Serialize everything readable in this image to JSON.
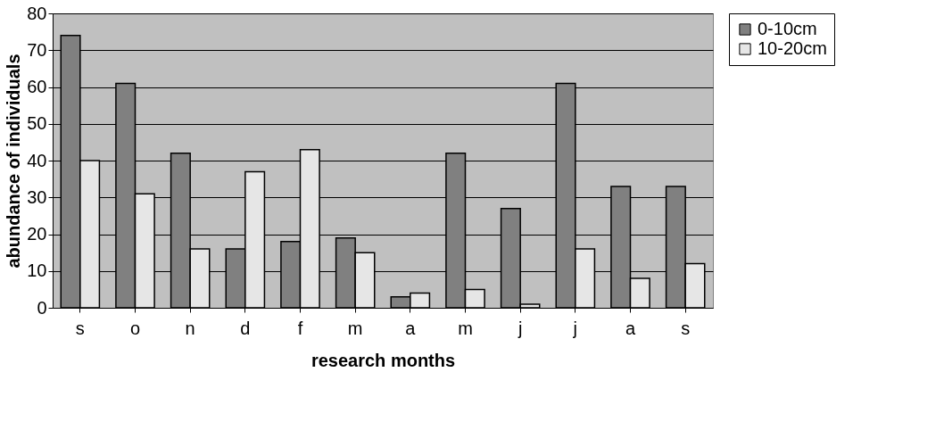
{
  "chart_data": {
    "type": "bar",
    "xlabel": "research months",
    "ylabel": "abundance of individuals",
    "categories": [
      "s",
      "o",
      "n",
      "d",
      "f",
      "m",
      "a",
      "m",
      "j",
      "j",
      "a",
      "s"
    ],
    "series": [
      {
        "name": "0-10cm",
        "color": "#808080",
        "values": [
          74,
          61,
          42,
          16,
          18,
          19,
          3,
          42,
          27,
          61,
          33,
          33
        ]
      },
      {
        "name": "10-20cm",
        "color": "#e6e6e6",
        "values": [
          40,
          31,
          16,
          37,
          43,
          15,
          4,
          5,
          1,
          16,
          8,
          12
        ]
      }
    ],
    "ylim": [
      0,
      80
    ],
    "yticks": [
      0,
      10,
      20,
      30,
      40,
      50,
      60,
      70,
      80
    ],
    "grid": "y",
    "legend": "right"
  }
}
